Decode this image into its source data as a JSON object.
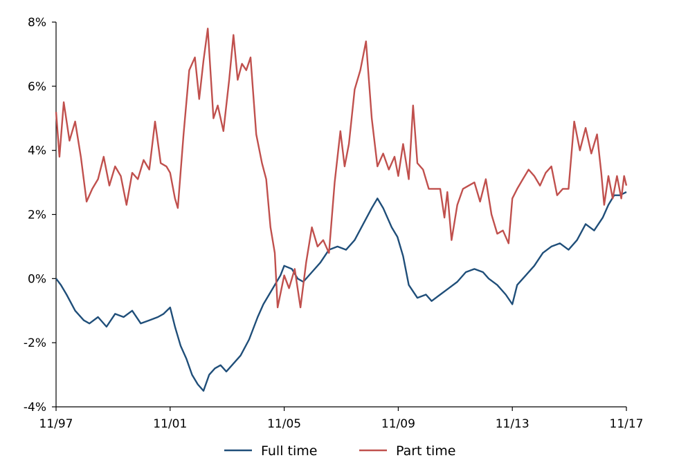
{
  "chart_data": {
    "type": "line",
    "title": "",
    "xlabel": "",
    "ylabel": "",
    "ylim": [
      -4,
      8
    ],
    "y_ticks": [
      "-4%",
      "-2%",
      "0%",
      "2%",
      "4%",
      "6%",
      "8%"
    ],
    "y_tick_values": [
      -4,
      -2,
      0,
      2,
      4,
      6,
      8
    ],
    "x_range": [
      1997.83,
      2017.83
    ],
    "x_ticks": [
      "11/97",
      "11/01",
      "11/05",
      "11/09",
      "11/13",
      "11/17"
    ],
    "x_tick_values": [
      1997.83,
      2001.83,
      2005.83,
      2009.83,
      2013.83,
      2017.83
    ],
    "grid": false,
    "legend_position": "bottom-center",
    "series": [
      {
        "name": "Full time",
        "color": "#1f4e79",
        "points": [
          [
            1997.83,
            0.0
          ],
          [
            1998.0,
            -0.2
          ],
          [
            1998.2,
            -0.5
          ],
          [
            1998.5,
            -1.0
          ],
          [
            1998.8,
            -1.3
          ],
          [
            1999.0,
            -1.4
          ],
          [
            1999.3,
            -1.2
          ],
          [
            1999.6,
            -1.5
          ],
          [
            1999.9,
            -1.1
          ],
          [
            2000.2,
            -1.2
          ],
          [
            2000.5,
            -1.0
          ],
          [
            2000.8,
            -1.4
          ],
          [
            2001.1,
            -1.3
          ],
          [
            2001.4,
            -1.2
          ],
          [
            2001.6,
            -1.1
          ],
          [
            2001.83,
            -0.9
          ],
          [
            2002.0,
            -1.5
          ],
          [
            2002.2,
            -2.1
          ],
          [
            2002.4,
            -2.5
          ],
          [
            2002.6,
            -3.0
          ],
          [
            2002.8,
            -3.3
          ],
          [
            2003.0,
            -3.5
          ],
          [
            2003.2,
            -3.0
          ],
          [
            2003.4,
            -2.8
          ],
          [
            2003.6,
            -2.7
          ],
          [
            2003.8,
            -2.9
          ],
          [
            2004.0,
            -2.7
          ],
          [
            2004.3,
            -2.4
          ],
          [
            2004.6,
            -1.9
          ],
          [
            2004.9,
            -1.2
          ],
          [
            2005.1,
            -0.8
          ],
          [
            2005.3,
            -0.5
          ],
          [
            2005.5,
            -0.2
          ],
          [
            2005.7,
            0.1
          ],
          [
            2005.83,
            0.4
          ],
          [
            2006.1,
            0.3
          ],
          [
            2006.3,
            0.0
          ],
          [
            2006.5,
            -0.1
          ],
          [
            2006.8,
            0.2
          ],
          [
            2007.1,
            0.5
          ],
          [
            2007.4,
            0.9
          ],
          [
            2007.7,
            1.0
          ],
          [
            2008.0,
            0.9
          ],
          [
            2008.3,
            1.2
          ],
          [
            2008.6,
            1.7
          ],
          [
            2008.9,
            2.2
          ],
          [
            2009.1,
            2.5
          ],
          [
            2009.3,
            2.2
          ],
          [
            2009.6,
            1.6
          ],
          [
            2009.8,
            1.3
          ],
          [
            2010.0,
            0.7
          ],
          [
            2010.2,
            -0.2
          ],
          [
            2010.5,
            -0.6
          ],
          [
            2010.8,
            -0.5
          ],
          [
            2011.0,
            -0.7
          ],
          [
            2011.3,
            -0.5
          ],
          [
            2011.6,
            -0.3
          ],
          [
            2011.9,
            -0.1
          ],
          [
            2012.2,
            0.2
          ],
          [
            2012.5,
            0.3
          ],
          [
            2012.8,
            0.2
          ],
          [
            2013.0,
            0.0
          ],
          [
            2013.3,
            -0.2
          ],
          [
            2013.6,
            -0.5
          ],
          [
            2013.83,
            -0.8
          ],
          [
            2014.0,
            -0.2
          ],
          [
            2014.3,
            0.1
          ],
          [
            2014.6,
            0.4
          ],
          [
            2014.9,
            0.8
          ],
          [
            2015.2,
            1.0
          ],
          [
            2015.5,
            1.1
          ],
          [
            2015.8,
            0.9
          ],
          [
            2016.1,
            1.2
          ],
          [
            2016.4,
            1.7
          ],
          [
            2016.7,
            1.5
          ],
          [
            2017.0,
            1.9
          ],
          [
            2017.2,
            2.3
          ],
          [
            2017.4,
            2.6
          ],
          [
            2017.6,
            2.6
          ],
          [
            2017.83,
            2.7
          ]
        ]
      },
      {
        "name": "Part time",
        "color": "#c0504d",
        "points": [
          [
            1997.83,
            5.2
          ],
          [
            1997.95,
            3.8
          ],
          [
            1998.1,
            5.5
          ],
          [
            1998.3,
            4.3
          ],
          [
            1998.5,
            4.9
          ],
          [
            1998.7,
            3.8
          ],
          [
            1998.9,
            2.4
          ],
          [
            1999.1,
            2.8
          ],
          [
            1999.3,
            3.1
          ],
          [
            1999.5,
            3.8
          ],
          [
            1999.7,
            2.9
          ],
          [
            1999.9,
            3.5
          ],
          [
            2000.1,
            3.2
          ],
          [
            2000.3,
            2.3
          ],
          [
            2000.5,
            3.3
          ],
          [
            2000.7,
            3.1
          ],
          [
            2000.9,
            3.7
          ],
          [
            2001.1,
            3.4
          ],
          [
            2001.3,
            4.9
          ],
          [
            2001.5,
            3.6
          ],
          [
            2001.7,
            3.5
          ],
          [
            2001.83,
            3.3
          ],
          [
            2002.0,
            2.5
          ],
          [
            2002.1,
            2.2
          ],
          [
            2002.3,
            4.5
          ],
          [
            2002.5,
            6.5
          ],
          [
            2002.7,
            6.9
          ],
          [
            2002.85,
            5.6
          ],
          [
            2003.0,
            6.8
          ],
          [
            2003.15,
            7.8
          ],
          [
            2003.35,
            5.0
          ],
          [
            2003.5,
            5.4
          ],
          [
            2003.7,
            4.6
          ],
          [
            2003.9,
            6.2
          ],
          [
            2004.05,
            7.6
          ],
          [
            2004.2,
            6.2
          ],
          [
            2004.35,
            6.7
          ],
          [
            2004.5,
            6.5
          ],
          [
            2004.65,
            6.9
          ],
          [
            2004.85,
            4.5
          ],
          [
            2005.05,
            3.6
          ],
          [
            2005.2,
            3.1
          ],
          [
            2005.35,
            1.6
          ],
          [
            2005.5,
            0.8
          ],
          [
            2005.6,
            -0.9
          ],
          [
            2005.83,
            0.1
          ],
          [
            2006.0,
            -0.3
          ],
          [
            2006.2,
            0.3
          ],
          [
            2006.4,
            -0.9
          ],
          [
            2006.6,
            0.5
          ],
          [
            2006.8,
            1.6
          ],
          [
            2007.0,
            1.0
          ],
          [
            2007.2,
            1.2
          ],
          [
            2007.4,
            0.8
          ],
          [
            2007.6,
            3.0
          ],
          [
            2007.8,
            4.6
          ],
          [
            2007.95,
            3.5
          ],
          [
            2008.1,
            4.2
          ],
          [
            2008.3,
            5.9
          ],
          [
            2008.5,
            6.5
          ],
          [
            2008.7,
            7.4
          ],
          [
            2008.9,
            5.0
          ],
          [
            2009.1,
            3.5
          ],
          [
            2009.3,
            3.9
          ],
          [
            2009.5,
            3.4
          ],
          [
            2009.7,
            3.8
          ],
          [
            2009.83,
            3.2
          ],
          [
            2010.0,
            4.2
          ],
          [
            2010.2,
            3.1
          ],
          [
            2010.35,
            5.4
          ],
          [
            2010.5,
            3.6
          ],
          [
            2010.7,
            3.4
          ],
          [
            2010.9,
            2.8
          ],
          [
            2011.1,
            2.8
          ],
          [
            2011.3,
            2.8
          ],
          [
            2011.45,
            1.9
          ],
          [
            2011.55,
            2.7
          ],
          [
            2011.7,
            1.2
          ],
          [
            2011.9,
            2.3
          ],
          [
            2012.1,
            2.8
          ],
          [
            2012.3,
            2.9
          ],
          [
            2012.5,
            3.0
          ],
          [
            2012.7,
            2.4
          ],
          [
            2012.9,
            3.1
          ],
          [
            2013.1,
            2.0
          ],
          [
            2013.3,
            1.4
          ],
          [
            2013.5,
            1.5
          ],
          [
            2013.7,
            1.1
          ],
          [
            2013.83,
            2.5
          ],
          [
            2014.0,
            2.8
          ],
          [
            2014.2,
            3.1
          ],
          [
            2014.4,
            3.4
          ],
          [
            2014.6,
            3.2
          ],
          [
            2014.8,
            2.9
          ],
          [
            2015.0,
            3.3
          ],
          [
            2015.2,
            3.5
          ],
          [
            2015.4,
            2.6
          ],
          [
            2015.6,
            2.8
          ],
          [
            2015.8,
            2.8
          ],
          [
            2016.0,
            4.9
          ],
          [
            2016.2,
            4.0
          ],
          [
            2016.4,
            4.7
          ],
          [
            2016.6,
            3.9
          ],
          [
            2016.8,
            4.5
          ],
          [
            2016.95,
            3.3
          ],
          [
            2017.05,
            2.3
          ],
          [
            2017.2,
            3.2
          ],
          [
            2017.35,
            2.5
          ],
          [
            2017.5,
            3.2
          ],
          [
            2017.65,
            2.5
          ],
          [
            2017.75,
            3.2
          ],
          [
            2017.83,
            2.9
          ]
        ]
      }
    ]
  }
}
